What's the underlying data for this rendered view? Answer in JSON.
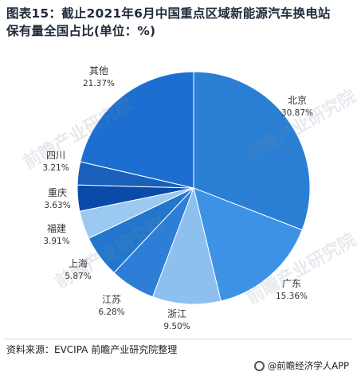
{
  "title": {
    "line1": "图表15：截止2021年6月中国重点区域新能源汽车换电站",
    "line2": "保有量全国占比(单位：%)"
  },
  "chart_data": {
    "type": "pie",
    "title": "图表15：截止2021年6月中国重点区域新能源汽车换电站保有量全国占比(单位：%)",
    "unit": "%",
    "start": "12 o'clock, clockwise",
    "slices": [
      {
        "label": "北京",
        "value": 30.87,
        "value_text": "30.87%",
        "color": "#2a7fd4"
      },
      {
        "label": "广东",
        "value": 15.36,
        "value_text": "15.36%",
        "color": "#3d92e6"
      },
      {
        "label": "浙江",
        "value": 9.5,
        "value_text": "9.50%",
        "color": "#8ec0ef"
      },
      {
        "label": "江苏",
        "value": 6.28,
        "value_text": "6.28%",
        "color": "#2c7ed6"
      },
      {
        "label": "上海",
        "value": 5.87,
        "value_text": "5.87%",
        "color": "#2277cc"
      },
      {
        "label": "福建",
        "value": 3.91,
        "value_text": "3.91%",
        "color": "#9cc9f2"
      },
      {
        "label": "重庆",
        "value": 3.63,
        "value_text": "3.63%",
        "color": "#0a4aa8"
      },
      {
        "label": "四川",
        "value": 3.21,
        "value_text": "3.21%",
        "color": "#1a5fba"
      },
      {
        "label": "其他",
        "value": 21.37,
        "value_text": "21.37%",
        "color": "#1c6fd0"
      }
    ]
  },
  "source": "资料来源：EVCIPA 前瞻产业研究院整理",
  "brand": "@前瞻经济学人APP",
  "watermark": "前瞻产业研究院"
}
